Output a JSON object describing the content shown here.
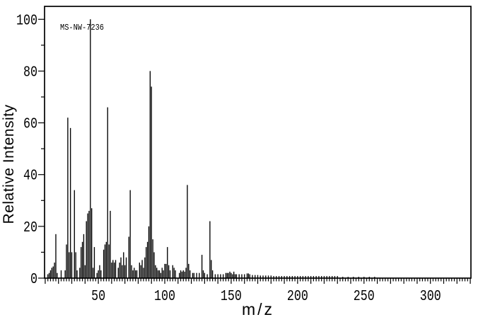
{
  "figure": {
    "annotation": "MS-NW-7236"
  },
  "chart_data": {
    "type": "bar",
    "subtype": "mass-spectrum-stick-plot",
    "title": "",
    "annotation": "MS-NW-7236",
    "xlabel": "m/z",
    "ylabel": "Relative Intensity",
    "xlim": [
      9.5,
      330.5
    ],
    "ylim": [
      0,
      105
    ],
    "x_tick_labels": [
      50,
      100,
      150,
      200,
      250,
      300
    ],
    "x_major_tick_step": 10,
    "x_minor_tick_step": 2,
    "y_tick_labels": [
      0,
      20,
      40,
      60,
      80,
      100
    ],
    "y_major_tick_step": 20,
    "y_minor_tick_step": 10,
    "grid": false,
    "legend": false,
    "line_color": "#000000",
    "peaks": [
      [
        12,
        1.5
      ],
      [
        13,
        2
      ],
      [
        14,
        3
      ],
      [
        15,
        4
      ],
      [
        16,
        4.5
      ],
      [
        17,
        6
      ],
      [
        18,
        17
      ],
      [
        19,
        2
      ],
      [
        22,
        3
      ],
      [
        25,
        3
      ],
      [
        26,
        13
      ],
      [
        27,
        62
      ],
      [
        28,
        10
      ],
      [
        29,
        58
      ],
      [
        30,
        10
      ],
      [
        32,
        34
      ],
      [
        33,
        10
      ],
      [
        34,
        3
      ],
      [
        36,
        4
      ],
      [
        37,
        12
      ],
      [
        38,
        14
      ],
      [
        39,
        17
      ],
      [
        40,
        5
      ],
      [
        41,
        22
      ],
      [
        42,
        25
      ],
      [
        43,
        26
      ],
      [
        44,
        100
      ],
      [
        45,
        27
      ],
      [
        46,
        4
      ],
      [
        47,
        12
      ],
      [
        49,
        2
      ],
      [
        50,
        3
      ],
      [
        51,
        5
      ],
      [
        52,
        3
      ],
      [
        54,
        11
      ],
      [
        55,
        13
      ],
      [
        56,
        14
      ],
      [
        57,
        66
      ],
      [
        58,
        13
      ],
      [
        59,
        26
      ],
      [
        60,
        6
      ],
      [
        61,
        7
      ],
      [
        62,
        6
      ],
      [
        63,
        7
      ],
      [
        65,
        4
      ],
      [
        66,
        6
      ],
      [
        67,
        8
      ],
      [
        68,
        5
      ],
      [
        69,
        10
      ],
      [
        70,
        5
      ],
      [
        71,
        8
      ],
      [
        73,
        16
      ],
      [
        74,
        34
      ],
      [
        75,
        5
      ],
      [
        76,
        3
      ],
      [
        77,
        4
      ],
      [
        78,
        3
      ],
      [
        79,
        3
      ],
      [
        81,
        6
      ],
      [
        82,
        5
      ],
      [
        83,
        7
      ],
      [
        84,
        4
      ],
      [
        85,
        8
      ],
      [
        86,
        12
      ],
      [
        87,
        14
      ],
      [
        88,
        20
      ],
      [
        89,
        80
      ],
      [
        90,
        74
      ],
      [
        91,
        15
      ],
      [
        92,
        10
      ],
      [
        93,
        5
      ],
      [
        94,
        4
      ],
      [
        95,
        3
      ],
      [
        96,
        3
      ],
      [
        97,
        2
      ],
      [
        98,
        4
      ],
      [
        99,
        3
      ],
      [
        100,
        5.5
      ],
      [
        101,
        5.5
      ],
      [
        102,
        12
      ],
      [
        103,
        5
      ],
      [
        104,
        3
      ],
      [
        106,
        5
      ],
      [
        107,
        4
      ],
      [
        108,
        3
      ],
      [
        111,
        2
      ],
      [
        112,
        3
      ],
      [
        113,
        2.5
      ],
      [
        114,
        3
      ],
      [
        115,
        2.5
      ],
      [
        116,
        4
      ],
      [
        117,
        36
      ],
      [
        118,
        5.5
      ],
      [
        119,
        3
      ],
      [
        121,
        2
      ],
      [
        122,
        2
      ],
      [
        124,
        2
      ],
      [
        126,
        2
      ],
      [
        128,
        9
      ],
      [
        129,
        3
      ],
      [
        130,
        2
      ],
      [
        132,
        1.5
      ],
      [
        134,
        22
      ],
      [
        135,
        7
      ],
      [
        136,
        3
      ],
      [
        138,
        1.5
      ],
      [
        140,
        1.5
      ],
      [
        142,
        1.5
      ],
      [
        144,
        1.5
      ],
      [
        146,
        2
      ],
      [
        147,
        2
      ],
      [
        148,
        2
      ],
      [
        149,
        2.5
      ],
      [
        150,
        2
      ],
      [
        151,
        1.5
      ],
      [
        152,
        2.5
      ],
      [
        153,
        1.5
      ],
      [
        154,
        1.5
      ],
      [
        156,
        1.5
      ],
      [
        158,
        1.5
      ],
      [
        160,
        1.5
      ],
      [
        162,
        1.8
      ],
      [
        163,
        1.8
      ],
      [
        164,
        1.5
      ],
      [
        166,
        1.2
      ],
      [
        168,
        1.2
      ],
      [
        170,
        1.2
      ],
      [
        172,
        1
      ],
      [
        174,
        1
      ],
      [
        176,
        1
      ],
      [
        178,
        1
      ],
      [
        180,
        1
      ]
    ],
    "noise": [
      {
        "from": 182,
        "to": 230,
        "step": 2,
        "intensity": 0.8
      },
      {
        "from": 234,
        "to": 258,
        "step": 4,
        "intensity": 0.5
      }
    ]
  }
}
